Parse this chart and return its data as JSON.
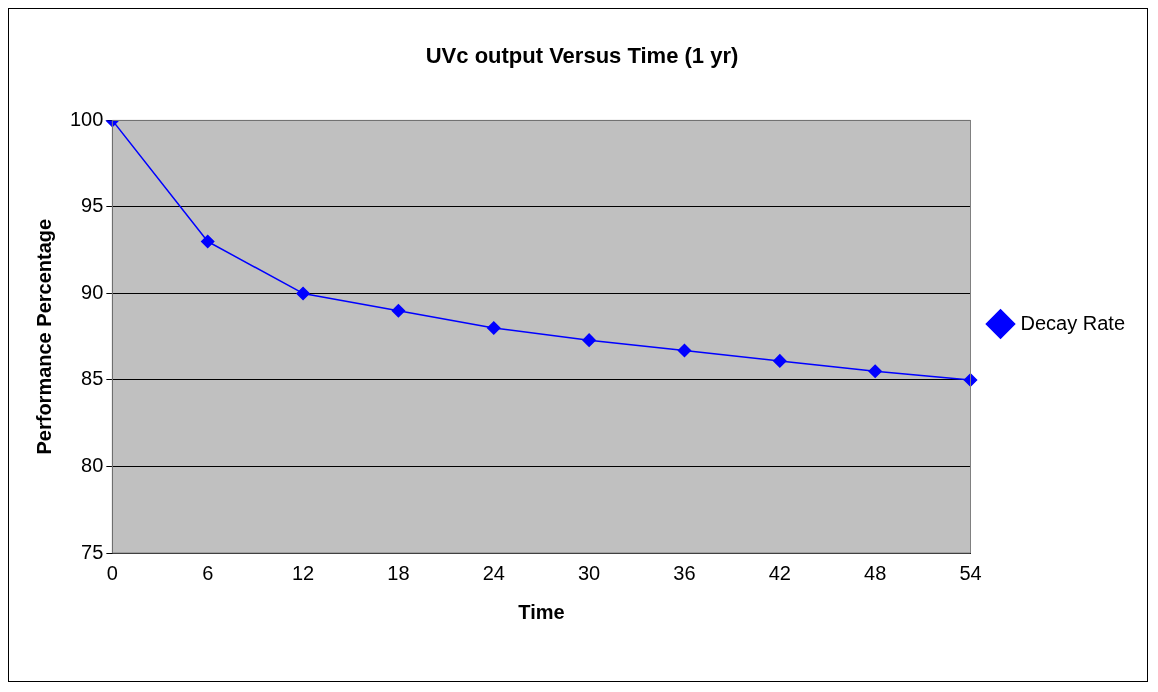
{
  "chart_data": {
    "type": "line",
    "title": "UVc output Versus Time (1 yr)",
    "xlabel": "Time",
    "ylabel": "Performance Percentage",
    "categories": [
      "0",
      "6",
      "12",
      "18",
      "24",
      "30",
      "36",
      "42",
      "48",
      "54"
    ],
    "series": [
      {
        "name": "Decay Rate",
        "color": "#0000ff",
        "values": [
          100,
          93,
          90,
          89,
          88,
          87.3,
          86.7,
          86.1,
          85.5,
          85
        ]
      }
    ],
    "ylim": [
      75,
      100
    ],
    "yticks": [
      75,
      80,
      85,
      90,
      95,
      100
    ],
    "grid": "y",
    "legend": "right",
    "marker": "diamond",
    "line_style": "solid"
  }
}
